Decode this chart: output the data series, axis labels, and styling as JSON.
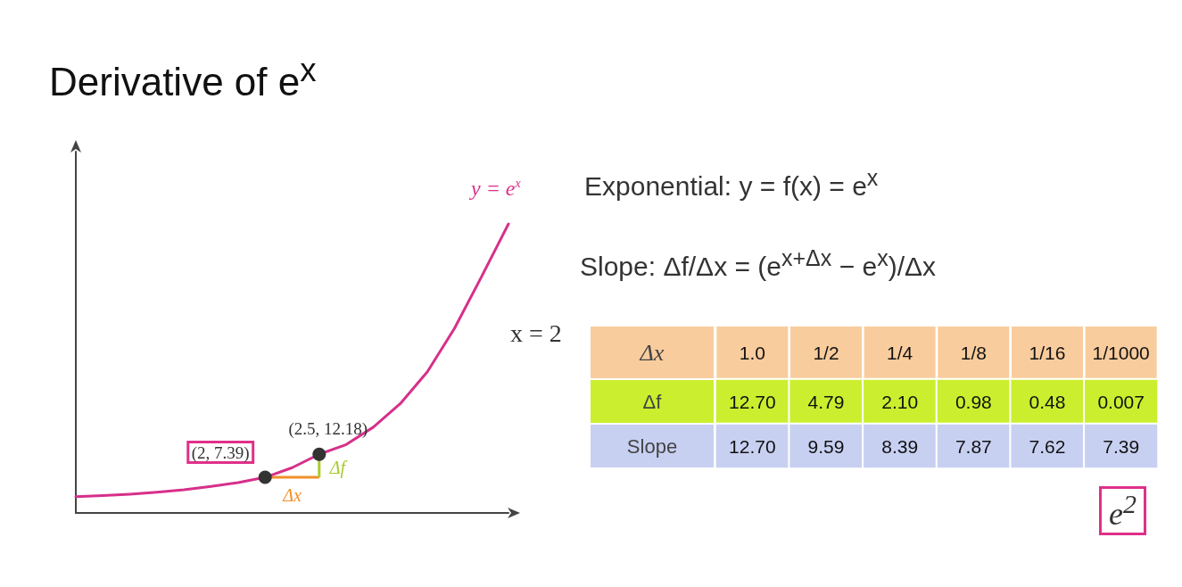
{
  "chart_data": [
    {
      "type": "line",
      "title": "Derivative of e$^{x}$",
      "ylim": [
        0,
        75
      ],
      "categories": [
        null,
        null,
        null,
        null,
        null,
        null,
        null,
        null,
        null,
        null,
        null,
        null,
        null,
        null,
        null,
        null,
        null
      ],
      "series": [
        {
          "name": "y = e$^{x}$",
          "color": "#d6308a",
          "values": [
            3.4,
            3.6,
            3.9,
            4.3,
            4.8,
            5.5,
            6.3,
            7.39,
            9.4,
            12.18,
            14.2,
            17.8,
            22.7,
            29.3,
            38.3,
            49,
            60
          ],
          "value_labels": [
            null,
            null,
            null,
            null,
            null,
            null,
            null,
            "(2, 7.39)",
            null,
            "(2.5, 12.18)",
            null,
            null,
            null,
            null,
            null,
            null,
            null
          ]
        }
      ],
      "annotations": [
        "Δx",
        "Δf"
      ]
    },
    {
      "type": "heatmap",
      "xlabel": "Δx",
      "categories": [
        "1.0",
        "1/2",
        "1/4",
        "1/8",
        "1/16",
        "1/1000"
      ],
      "y_categories": [
        "Δf",
        "Slope"
      ],
      "cells": [
        [
          12.7,
          4.79,
          2.1,
          0.98,
          0.48,
          0.007
        ],
        [
          12.7,
          9.59,
          8.39,
          7.87,
          7.62,
          7.39
        ]
      ],
      "cell_labels": [
        [
          "12.70",
          "4.79",
          "2.10",
          "0.98",
          "0.48",
          "0.007"
        ],
        [
          "12.70",
          "9.59",
          "8.39",
          "7.87",
          "7.62",
          "7.39"
        ]
      ],
      "colors": [
        "#f9cc9d",
        "#cbef2e",
        "#c8d0f2"
      ],
      "annotations": [
        "Exponential: y = f(x) = e$^{x}$",
        "Slope:  Δf/Δx = (e$^{x+Δx}$ − e$^{x}$)/Δx",
        "x = 2",
        "e$^{2}$"
      ]
    }
  ]
}
